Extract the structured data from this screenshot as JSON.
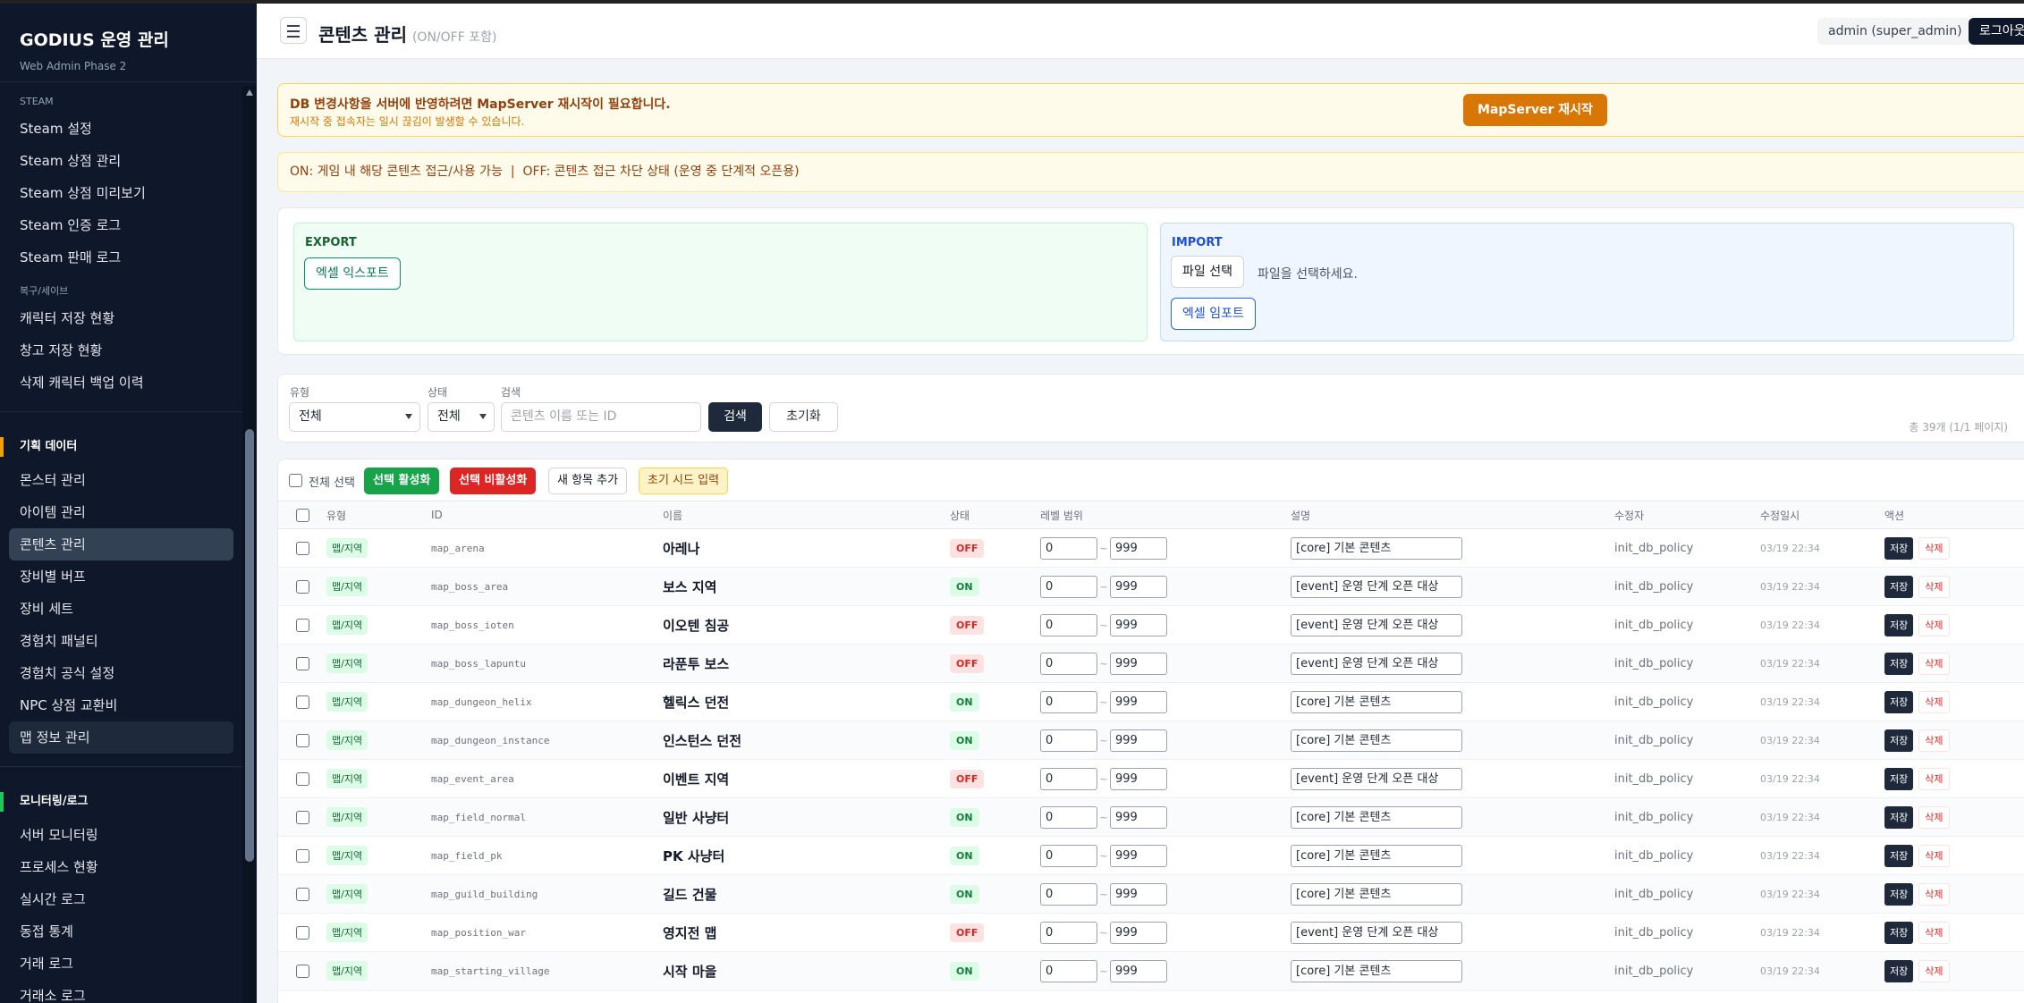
{
  "sidebar": {
    "title": "GODIUS 운영 관리",
    "subtitle": "Web Admin Phase 2",
    "groups": [
      {
        "label": "STEAM",
        "items": [
          "Steam 설정",
          "Steam 상점 관리",
          "Steam 상점 미리보기",
          "Steam 인증 로그",
          "Steam 판매 로그"
        ]
      },
      {
        "label": "복구/세이브",
        "items": [
          "캐릭터 저장 현황",
          "창고 저장 현황",
          "삭제 캐릭터 백업 이력"
        ]
      },
      {
        "label": "기획 데이터",
        "items": [
          "몬스터 관리",
          "아이템 관리",
          "콘텐츠 관리",
          "장비별 버프",
          "장비 세트",
          "경험치 패널티",
          "경험치 공식 설정",
          "NPC 상점 교환비",
          "맵 정보 관리"
        ]
      },
      {
        "label": "모니터링/로그",
        "items": [
          "서버 모니터링",
          "프로세스 현황",
          "실시간 로그",
          "동접 통계",
          "거래 로그",
          "거래소 로그"
        ]
      }
    ]
  },
  "header": {
    "title": "콘텐츠 관리",
    "subtitle": "(ON/OFF 포함)",
    "user": "admin (super_admin)",
    "logout": "로그아웃"
  },
  "notice": {
    "title": "DB 변경사항을 서버에 반영하려면 MapServer 재시작이 필요합니다.",
    "detail": "재시작 중 접속자는 일시 끊김이 발생할 수 있습니다.",
    "button": "MapServer 재시작"
  },
  "info": "ON: 게임 내 해당 콘텐츠 접근/사용 가능  |  OFF: 콘텐츠 접근 차단 상태 (운영 중 단계적 오픈용)",
  "export": {
    "label": "EXPORT",
    "button": "엑셀 익스포트"
  },
  "import": {
    "label": "IMPORT",
    "file_button": "파일 선택",
    "file_status": "파일을 선택하세요.",
    "button": "엑셀 임포트"
  },
  "filters": {
    "type_label": "유형",
    "type_value": "전체",
    "state_label": "상태",
    "state_value": "전체",
    "search_label": "검색",
    "search_placeholder": "콘텐츠 이름 또는 ID",
    "search_button": "검색",
    "reset_button": "초기화",
    "total": "총 39개 (1/1 페이지)"
  },
  "toolbar": {
    "select_all": "전체 선택",
    "activate": "선택 활성화",
    "deactivate": "선택 비활성화",
    "add": "새 항목 추가",
    "seed": "초기 시드 입력"
  },
  "table": {
    "columns": [
      "유형",
      "ID",
      "이름",
      "상태",
      "레벨 범위",
      "설명",
      "수정자",
      "수정일시",
      "액션"
    ],
    "range_sep": "~",
    "save": "저장",
    "delete": "삭제",
    "rows": [
      {
        "type": "맵/지역",
        "id": "map_arena",
        "name": "아레나",
        "state": "OFF",
        "min": "0",
        "max": "999",
        "desc": "[core] 기본 콘텐츠",
        "modifier": "init_db_policy",
        "date": "03/19 22:34"
      },
      {
        "type": "맵/지역",
        "id": "map_boss_area",
        "name": "보스 지역",
        "state": "ON",
        "min": "0",
        "max": "999",
        "desc": "[event] 운영 단계 오픈 대상",
        "modifier": "init_db_policy",
        "date": "03/19 22:34"
      },
      {
        "type": "맵/지역",
        "id": "map_boss_ioten",
        "name": "이오텐 침공",
        "state": "OFF",
        "min": "0",
        "max": "999",
        "desc": "[event] 운영 단계 오픈 대상",
        "modifier": "init_db_policy",
        "date": "03/19 22:34"
      },
      {
        "type": "맵/지역",
        "id": "map_boss_lapuntu",
        "name": "라푼투 보스",
        "state": "OFF",
        "min": "0",
        "max": "999",
        "desc": "[event] 운영 단계 오픈 대상",
        "modifier": "init_db_policy",
        "date": "03/19 22:34"
      },
      {
        "type": "맵/지역",
        "id": "map_dungeon_helix",
        "name": "헬릭스 던전",
        "state": "ON",
        "min": "0",
        "max": "999",
        "desc": "[core] 기본 콘텐츠",
        "modifier": "init_db_policy",
        "date": "03/19 22:34"
      },
      {
        "type": "맵/지역",
        "id": "map_dungeon_instance",
        "name": "인스턴스 던전",
        "state": "ON",
        "min": "0",
        "max": "999",
        "desc": "[core] 기본 콘텐츠",
        "modifier": "init_db_policy",
        "date": "03/19 22:34"
      },
      {
        "type": "맵/지역",
        "id": "map_event_area",
        "name": "이벤트 지역",
        "state": "OFF",
        "min": "0",
        "max": "999",
        "desc": "[event] 운영 단계 오픈 대상",
        "modifier": "init_db_policy",
        "date": "03/19 22:34"
      },
      {
        "type": "맵/지역",
        "id": "map_field_normal",
        "name": "일반 사냥터",
        "state": "ON",
        "min": "0",
        "max": "999",
        "desc": "[core] 기본 콘텐츠",
        "modifier": "init_db_policy",
        "date": "03/19 22:34"
      },
      {
        "type": "맵/지역",
        "id": "map_field_pk",
        "name": "PK 사냥터",
        "state": "ON",
        "min": "0",
        "max": "999",
        "desc": "[core] 기본 콘텐츠",
        "modifier": "init_db_policy",
        "date": "03/19 22:34"
      },
      {
        "type": "맵/지역",
        "id": "map_guild_building",
        "name": "길드 건물",
        "state": "ON",
        "min": "0",
        "max": "999",
        "desc": "[core] 기본 콘텐츠",
        "modifier": "init_db_policy",
        "date": "03/19 22:34"
      },
      {
        "type": "맵/지역",
        "id": "map_position_war",
        "name": "영지전 맵",
        "state": "OFF",
        "min": "0",
        "max": "999",
        "desc": "[event] 운영 단계 오픈 대상",
        "modifier": "init_db_policy",
        "date": "03/19 22:34"
      },
      {
        "type": "맵/지역",
        "id": "map_starting_village",
        "name": "시작 마을",
        "state": "ON",
        "min": "0",
        "max": "999",
        "desc": "[core] 기본 콘텐츠",
        "modifier": "init_db_policy",
        "date": "03/19 22:34"
      }
    ]
  }
}
